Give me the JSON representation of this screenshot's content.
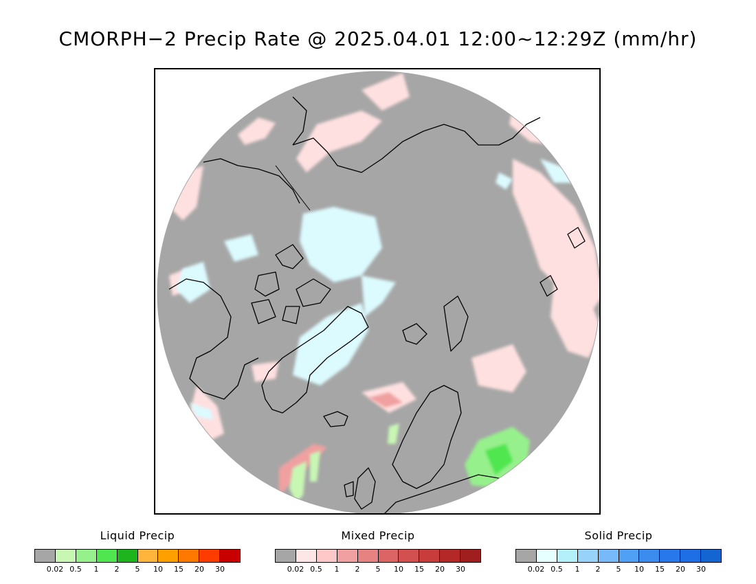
{
  "title": "CMORPH−2 Precip Rate @ 2025.04.01 12:00~12:29Z (mm/hr)",
  "colors": {
    "no_precip": "#a6a6a6",
    "coastline": "#000000",
    "frame": "#000000"
  },
  "legends": [
    {
      "title": "Liquid Precip",
      "colors": [
        "#a6a6a6",
        "#c8f7b4",
        "#96f08c",
        "#50e650",
        "#1eb41e",
        "#ffb43c",
        "#ffa000",
        "#ff7800",
        "#ff3c00",
        "#c80000"
      ],
      "ticks": [
        "0.02",
        "0.5",
        "1",
        "2",
        "5",
        "10",
        "15",
        "20",
        "30"
      ]
    },
    {
      "title": "Mixed Precip",
      "colors": [
        "#a6a6a6",
        "#ffe6e6",
        "#ffc8c8",
        "#f0a0a0",
        "#e68282",
        "#dc6464",
        "#d25050",
        "#c83c3c",
        "#b42828",
        "#a01e1e"
      ],
      "ticks": [
        "0.02",
        "0.5",
        "1",
        "2",
        "5",
        "10",
        "15",
        "20",
        "30"
      ]
    },
    {
      "title": "Solid Precip",
      "colors": [
        "#a6a6a6",
        "#e6ffff",
        "#b4f0fa",
        "#96d2fa",
        "#78b9fa",
        "#50a0f5",
        "#3c8cf0",
        "#2878eb",
        "#1e6ee6",
        "#1464d2"
      ],
      "ticks": [
        "0.02",
        "0.5",
        "1",
        "2",
        "5",
        "10",
        "15",
        "20",
        "30"
      ]
    }
  ]
}
